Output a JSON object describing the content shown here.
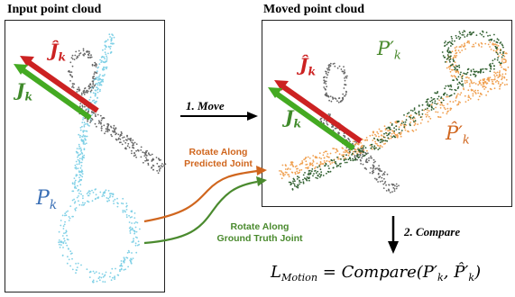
{
  "headings": {
    "input": "Input point cloud",
    "moved": "Moved point cloud"
  },
  "labels": {
    "pk": "P",
    "pk_sub": "k",
    "jk": "J",
    "jk_sub": "k",
    "jhat": "Ĵ",
    "jhat_sub": "k",
    "p_prime": "P′",
    "p_prime_sub": "k",
    "phat_prime": "P̂′",
    "phat_prime_sub": "k"
  },
  "steps": {
    "move": "1. Move",
    "compare": "2. Compare"
  },
  "rotations": {
    "predicted_line1": "Rotate Along",
    "predicted_line2": "Predicted Joint",
    "gt_line1": "Rotate Along",
    "gt_line2": "Ground Truth Joint"
  },
  "formula": {
    "lhs": "L",
    "lhs_sub": "Motion",
    "rhs": " = Compare(P′",
    "rhs_sub1": "k",
    "mid": ", P̂′",
    "rhs_sub2": "k",
    "end": ")"
  },
  "colors": {
    "predicted": "#d0661e",
    "ground_truth": "#4a8a2e",
    "red_arrow": "#cc2222",
    "green_arrow": "#44aa22",
    "cyan_points": "#7fd0e6",
    "gray_points": "#666666",
    "dark_green_points": "#2f5f2f",
    "orange_points": "#f0a050",
    "pk_text": "#3a6fb5"
  }
}
